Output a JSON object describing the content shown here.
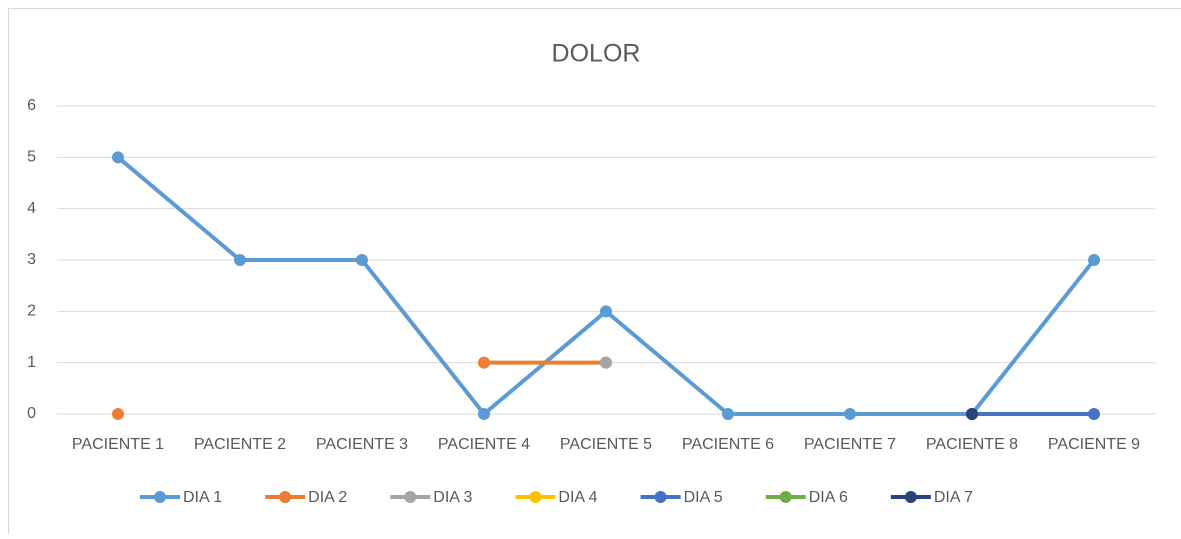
{
  "chart_data": {
    "type": "line",
    "title": "DOLOR",
    "categories": [
      "PACIENTE 1",
      "PACIENTE 2",
      "PACIENTE 3",
      "PACIENTE 4",
      "PACIENTE 5",
      "PACIENTE 6",
      "PACIENTE 7",
      "PACIENTE 8",
      "PACIENTE 9"
    ],
    "series": [
      {
        "name": "DIA 1",
        "color": "#5b9bd5",
        "values": [
          5,
          3,
          3,
          0,
          2,
          0,
          0,
          0,
          3
        ]
      },
      {
        "name": "DIA 2",
        "color": "#ed7d31",
        "values": [
          0,
          null,
          null,
          1,
          1,
          null,
          null,
          null,
          null
        ]
      },
      {
        "name": "DIA 3",
        "color": "#a5a5a5",
        "values": [
          null,
          null,
          null,
          null,
          1,
          null,
          null,
          null,
          null
        ]
      },
      {
        "name": "DIA 4",
        "color": "#ffc000",
        "values": [
          null,
          null,
          null,
          null,
          null,
          null,
          null,
          null,
          null
        ]
      },
      {
        "name": "DIA 5",
        "color": "#4472c4",
        "values": [
          null,
          null,
          null,
          null,
          null,
          null,
          null,
          0,
          0
        ]
      },
      {
        "name": "DIA 6",
        "color": "#70ad47",
        "values": [
          null,
          null,
          null,
          null,
          null,
          null,
          null,
          null,
          null
        ]
      },
      {
        "name": "DIA 7",
        "color": "#264478",
        "values": [
          null,
          null,
          null,
          null,
          null,
          null,
          null,
          0,
          null
        ]
      }
    ],
    "ylim": [
      0,
      6
    ],
    "yticks": [
      0,
      1,
      2,
      3,
      4,
      5,
      6
    ],
    "grid": true,
    "legend": "bottom"
  }
}
